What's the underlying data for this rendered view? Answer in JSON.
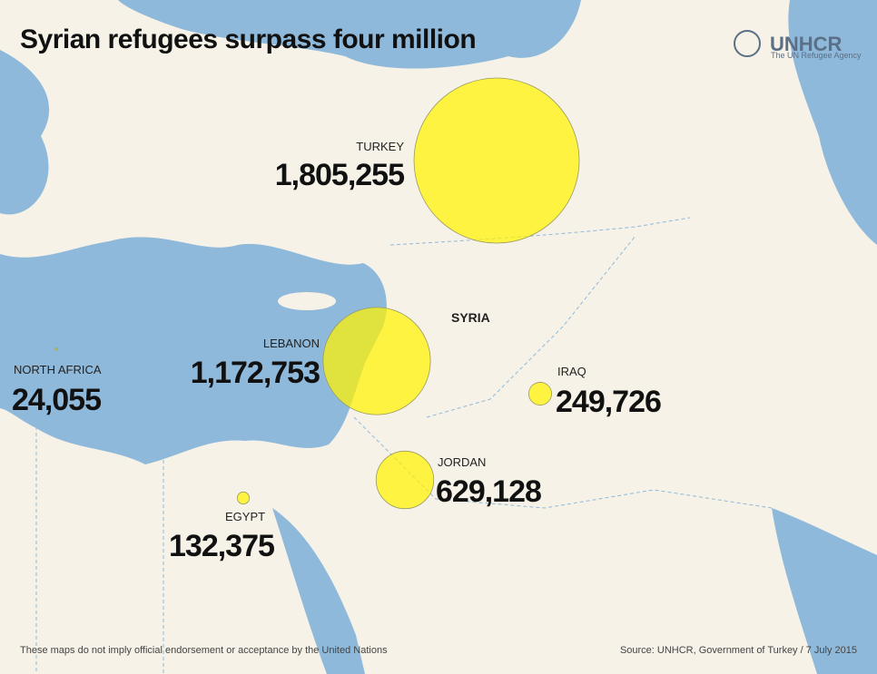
{
  "header": {
    "title": "Syrian refugees surpass four million",
    "logo": "UNHCR",
    "logo_subtitle": "The UN Refugee Agency"
  },
  "map": {
    "country_label": "SYRIA",
    "regions": [
      {
        "name": "TURKEY",
        "value": 1805255,
        "value_label": "1,805,255"
      },
      {
        "name": "LEBANON",
        "value": 1172753,
        "value_label": "1,172,753"
      },
      {
        "name": "JORDAN",
        "value": 629128,
        "value_label": "629,128"
      },
      {
        "name": "IRAQ",
        "value": 249726,
        "value_label": "249,726"
      },
      {
        "name": "EGYPT",
        "value": 132375,
        "value_label": "132,375"
      },
      {
        "name": "NORTH AFRICA",
        "value": 24055,
        "value_label": "24,055"
      }
    ]
  },
  "footer": {
    "disclaimer": "These maps do not imply official endorsement or acceptance by the United Nations",
    "source": "Source: UNHCR, Government of Turkey / 7 July 2015"
  }
}
